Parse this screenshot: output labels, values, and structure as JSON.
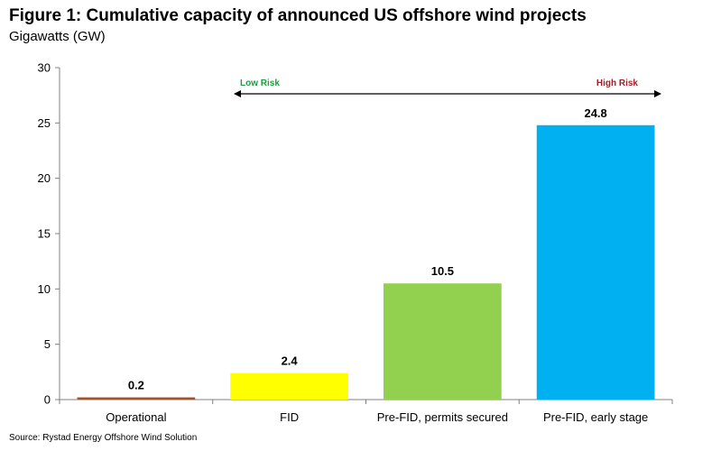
{
  "title": "Figure 1: Cumulative capacity of announced US offshore wind projects",
  "subtitle": "Gigawatts (GW)",
  "source": "Source: Rystad Energy Offshore Wind Solution",
  "annotations": {
    "low_risk": "Low Risk",
    "high_risk": "High Risk"
  },
  "colors": {
    "low_risk": "#1a9e3c",
    "high_risk": "#a0202a",
    "axis": "#808080"
  },
  "chart_data": {
    "type": "bar",
    "categories": [
      "Operational",
      "FID",
      "Pre-FID, permits secured",
      "Pre-FID, early stage"
    ],
    "values": [
      0.2,
      2.4,
      10.5,
      24.8
    ],
    "data_labels": [
      "0.2",
      "2.4",
      "10.5",
      "24.8"
    ],
    "colors": [
      "#a0522d",
      "#ffff00",
      "#92d050",
      "#00b0f0"
    ],
    "ylim": [
      0,
      30
    ],
    "yticks": [
      0,
      5,
      10,
      15,
      20,
      25,
      30
    ],
    "ytick_labels": [
      "0",
      "5",
      "10",
      "15",
      "20",
      "25",
      "30"
    ],
    "grid": false,
    "legend": "none"
  }
}
